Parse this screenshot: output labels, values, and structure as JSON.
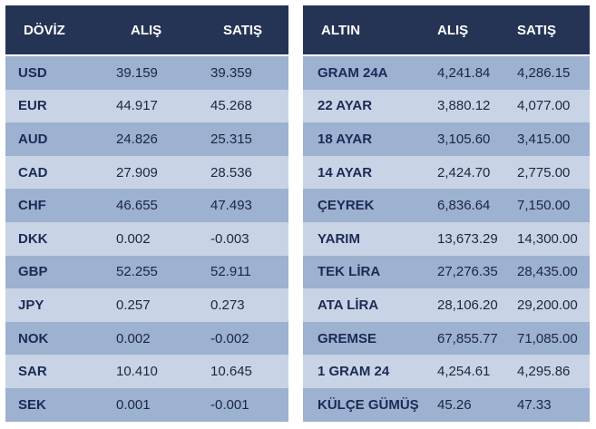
{
  "doviz": {
    "headers": {
      "name": "DÖVİZ",
      "buy": "ALIŞ",
      "sell": "SATIŞ"
    },
    "rows": [
      {
        "name": "USD",
        "buy": "39.159",
        "sell": "39.359"
      },
      {
        "name": "EUR",
        "buy": "44.917",
        "sell": "45.268"
      },
      {
        "name": "AUD",
        "buy": "24.826",
        "sell": "25.315"
      },
      {
        "name": "CAD",
        "buy": "27.909",
        "sell": "28.536"
      },
      {
        "name": "CHF",
        "buy": "46.655",
        "sell": "47.493"
      },
      {
        "name": "DKK",
        "buy": "0.002",
        "sell": "-0.003"
      },
      {
        "name": "GBP",
        "buy": "52.255",
        "sell": "52.911"
      },
      {
        "name": "JPY",
        "buy": "0.257",
        "sell": "0.273"
      },
      {
        "name": "NOK",
        "buy": "0.002",
        "sell": "-0.002"
      },
      {
        "name": "SAR",
        "buy": "10.410",
        "sell": "10.645"
      },
      {
        "name": "SEK",
        "buy": "0.001",
        "sell": "-0.001"
      }
    ]
  },
  "altin": {
    "headers": {
      "name": "ALTIN",
      "buy": "ALIŞ",
      "sell": "SATIŞ"
    },
    "rows": [
      {
        "name": "GRAM 24A",
        "buy": "4,241.84",
        "sell": "4,286.15"
      },
      {
        "name": "22 AYAR",
        "buy": "3,880.12",
        "sell": "4,077.00"
      },
      {
        "name": "18 AYAR",
        "buy": "3,105.60",
        "sell": "3,415.00"
      },
      {
        "name": "14 AYAR",
        "buy": "2,424.70",
        "sell": "2,775.00"
      },
      {
        "name": "ÇEYREK",
        "buy": "6,836.64",
        "sell": "7,150.00"
      },
      {
        "name": "YARIM",
        "buy": "13,673.29",
        "sell": "14,300.00"
      },
      {
        "name": "TEK LİRA",
        "buy": "27,276.35",
        "sell": "28,435.00"
      },
      {
        "name": "ATA LİRA",
        "buy": "28,106.20",
        "sell": "29,200.00"
      },
      {
        "name": "GREMSE",
        "buy": "67,855.77",
        "sell": "71,085.00"
      },
      {
        "name": "1 GRAM 24",
        "buy": "4,254.61",
        "sell": "4,295.86"
      },
      {
        "name": "KÜLÇE GÜMÜŞ",
        "buy": "45.26",
        "sell": "47.33"
      }
    ]
  },
  "colors": {
    "header_bg": "#253355",
    "row_dark": "#9db1d0",
    "row_light": "#c8d4e6",
    "text": "#1b2642"
  }
}
